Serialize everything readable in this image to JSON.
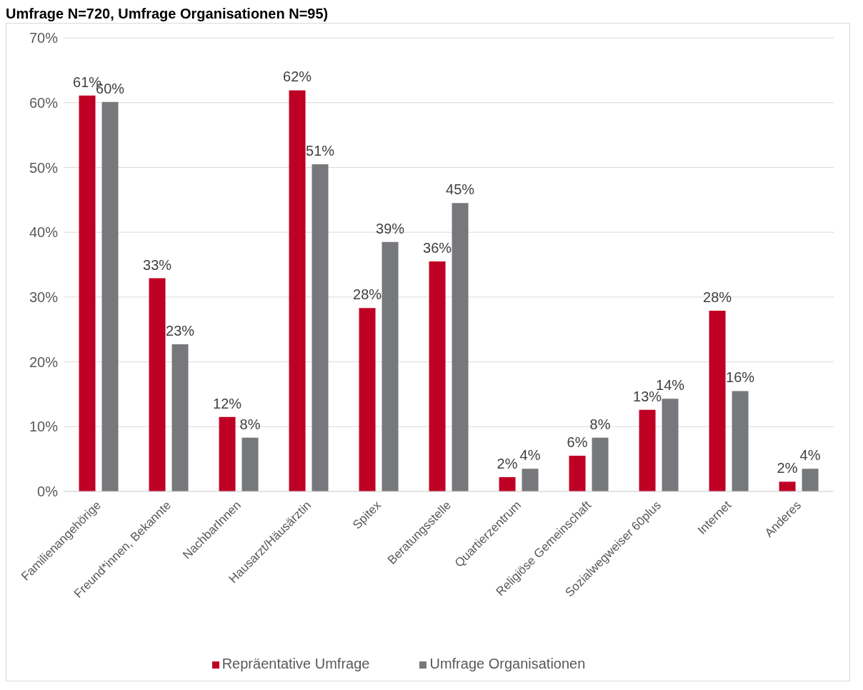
{
  "chart_data": {
    "type": "bar",
    "title": "Umfrage N=720, Umfrage Organisationen N=95)",
    "categories": [
      "Familienangehörige",
      "Freund*innen, Bekannte",
      "NachbarInnen",
      "Hausarzt/Häusärztin",
      "Spitex",
      "Beratungsstelle",
      "Quartierzentrum",
      "Religiöse Gemeinschaft",
      "Sozialwegweiser 60plus",
      "Internet",
      "Anderes"
    ],
    "series": [
      {
        "name": "Repräentative Umfrage",
        "color": "#be0024",
        "values": [
          61.1,
          32.9,
          11.5,
          61.9,
          28.3,
          35.5,
          2.2,
          5.5,
          12.6,
          27.9,
          1.5
        ],
        "value_labels": [
          "61%",
          "33%",
          "12%",
          "62%",
          "28%",
          "36%",
          "2%",
          "6%",
          "13%",
          "28%",
          "2%"
        ]
      },
      {
        "name": "Umfrage Organisationen",
        "color": "#77787b",
        "values": [
          60.1,
          22.7,
          8.3,
          50.5,
          38.5,
          44.5,
          3.5,
          8.3,
          14.3,
          15.5,
          3.5
        ],
        "value_labels": [
          "60%",
          "23%",
          "8%",
          "51%",
          "39%",
          "45%",
          "4%",
          "8%",
          "14%",
          "16%",
          "4%"
        ]
      }
    ],
    "ylim": [
      0,
      70
    ],
    "yticks": [
      {
        "value": 0,
        "label": "0%"
      },
      {
        "value": 10,
        "label": "10%"
      },
      {
        "value": 20,
        "label": "20%"
      },
      {
        "value": 30,
        "label": "30%"
      },
      {
        "value": 40,
        "label": "40%"
      },
      {
        "value": 50,
        "label": "50%"
      },
      {
        "value": 60,
        "label": "60%"
      },
      {
        "value": 70,
        "label": "70%"
      }
    ],
    "grid": "y",
    "legend": "bottom"
  }
}
